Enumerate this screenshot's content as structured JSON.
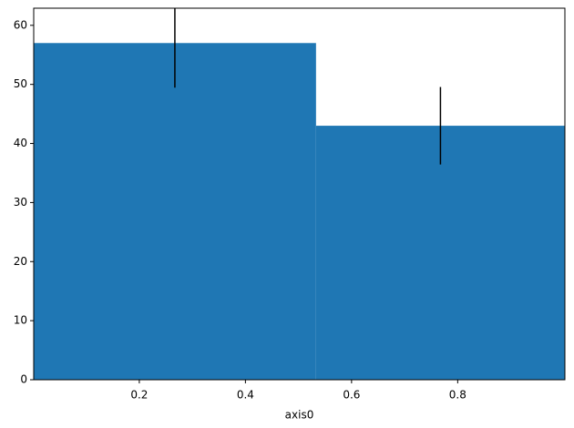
{
  "chart_data": {
    "type": "histogram",
    "x_label": "axis0",
    "bins": [
      0.001,
      0.533,
      1.002
    ],
    "counts": [
      57,
      43
    ],
    "errors": [
      7.55,
      6.56
    ],
    "color": "#1f77b4",
    "error_color": "#000000",
    "xlim": [
      0.001,
      1.002
    ],
    "ylim": [
      0,
      62.9
    ],
    "xticks": [
      0.2,
      0.4,
      0.6,
      0.8
    ],
    "yticks": [
      0,
      10,
      20,
      30,
      40,
      50,
      60
    ],
    "grid": false
  }
}
